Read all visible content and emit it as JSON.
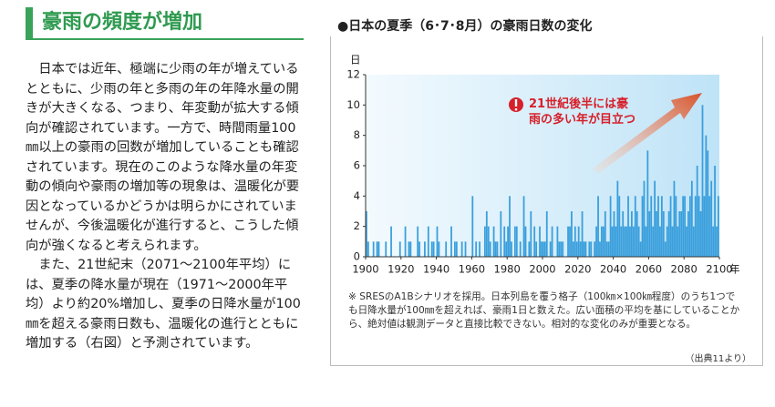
{
  "heading": "豪雨の頻度が増加",
  "paragraphs": [
    "日本では近年、極端に少雨の年が増えているとともに、少雨の年と多雨の年の年降水量の開きが大きくなる、つまり、年変動が拡大する傾向が確認されています。一方で、時間雨量100㎜以上の豪雨の回数が増加していることも確認されています。現在のこのような降水量の年変動の傾向や豪雨の増加等の現象は、温暖化が要因となっているかどうかは明らかにされていませんが、今後温暖化が進行すると、こうした傾向が強くなると考えられます。",
    "また、21世紀末（2071～2100年平均）には、夏季の降水量が現在（1971～2000年平均）より約20%増加し、夏季の日降水量が100㎜を超える豪雨日数も、温暖化の進行とともに増加する（右図）と予測されています。"
  ],
  "chart_data": {
    "type": "bar",
    "title": "●日本の夏季（6･7･8月）の豪雨日数の変化",
    "y_label": "日",
    "x_label": "年",
    "annotation": "21世紀後半には豪雨の多い年が目立つ",
    "note": "※ SRESのA1Bシナリオを採用。日本列島を覆う格子（100㎞×100㎞程度）のうち1つでも日降水量が100㎜を超えれば、豪雨1日と数えた。広い面積の平均を基にしていることから、絶対値は観測データと直接比較できない。相対的な変化のみが重要となる。",
    "source": "（出典11より）",
    "color": "#3a9fdc",
    "grid": false,
    "xlim": [
      1900,
      2100
    ],
    "ylim": [
      0,
      12
    ],
    "xticks": [
      1900,
      1920,
      1940,
      1960,
      1980,
      2000,
      2020,
      2040,
      2060,
      2080,
      2100
    ],
    "yticks": [
      0,
      2,
      4,
      6,
      8,
      10,
      12
    ],
    "x": [
      1900,
      1901,
      1902,
      1903,
      1904,
      1905,
      1906,
      1907,
      1908,
      1909,
      1910,
      1911,
      1912,
      1913,
      1914,
      1915,
      1916,
      1917,
      1918,
      1919,
      1920,
      1921,
      1922,
      1923,
      1924,
      1925,
      1926,
      1927,
      1928,
      1929,
      1930,
      1931,
      1932,
      1933,
      1934,
      1935,
      1936,
      1937,
      1938,
      1939,
      1940,
      1941,
      1942,
      1943,
      1944,
      1945,
      1946,
      1947,
      1948,
      1949,
      1950,
      1951,
      1952,
      1953,
      1954,
      1955,
      1956,
      1957,
      1958,
      1959,
      1960,
      1961,
      1962,
      1963,
      1964,
      1965,
      1966,
      1967,
      1968,
      1969,
      1970,
      1971,
      1972,
      1973,
      1974,
      1975,
      1976,
      1977,
      1978,
      1979,
      1980,
      1981,
      1982,
      1983,
      1984,
      1985,
      1986,
      1987,
      1988,
      1989,
      1990,
      1991,
      1992,
      1993,
      1994,
      1995,
      1996,
      1997,
      1998,
      1999,
      2000,
      2001,
      2002,
      2003,
      2004,
      2005,
      2006,
      2007,
      2008,
      2009,
      2010,
      2011,
      2012,
      2013,
      2014,
      2015,
      2016,
      2017,
      2018,
      2019,
      2020,
      2021,
      2022,
      2023,
      2024,
      2025,
      2026,
      2027,
      2028,
      2029,
      2030,
      2031,
      2032,
      2033,
      2034,
      2035,
      2036,
      2037,
      2038,
      2039,
      2040,
      2041,
      2042,
      2043,
      2044,
      2045,
      2046,
      2047,
      2048,
      2049,
      2050,
      2051,
      2052,
      2053,
      2054,
      2055,
      2056,
      2057,
      2058,
      2059,
      2060,
      2061,
      2062,
      2063,
      2064,
      2065,
      2066,
      2067,
      2068,
      2069,
      2070,
      2071,
      2072,
      2073,
      2074,
      2075,
      2076,
      2077,
      2078,
      2079,
      2080,
      2081,
      2082,
      2083,
      2084,
      2085,
      2086,
      2087,
      2088,
      2089,
      2090,
      2091,
      2092,
      2093,
      2094,
      2095,
      2096,
      2097,
      2098,
      2099
    ],
    "values": [
      3,
      1,
      0,
      0,
      1,
      0,
      1,
      1,
      0,
      0,
      0,
      1,
      0,
      0,
      2,
      0,
      0,
      0,
      0,
      1,
      0,
      0,
      2,
      0,
      1,
      1,
      0,
      0,
      0,
      2,
      1,
      0,
      0,
      1,
      0,
      2,
      0,
      1,
      1,
      0,
      2,
      1,
      0,
      0,
      0,
      1,
      0,
      0,
      2,
      0,
      1,
      1,
      0,
      0,
      1,
      0,
      1,
      0,
      0,
      0,
      4,
      0,
      1,
      0,
      1,
      0,
      0,
      2,
      3,
      2,
      1,
      0,
      2,
      1,
      1,
      0,
      3,
      0,
      2,
      1,
      2,
      4,
      1,
      0,
      2,
      2,
      0,
      1,
      0,
      4,
      2,
      0,
      1,
      3,
      0,
      2,
      1,
      0,
      2,
      1,
      1,
      1,
      3,
      0,
      1,
      2,
      0,
      0,
      2,
      1,
      1,
      1,
      0,
      0,
      2,
      2,
      3,
      1,
      2,
      1,
      2,
      1,
      3,
      1,
      1,
      0,
      1,
      1,
      0,
      1,
      2,
      4,
      1,
      2,
      2,
      3,
      1,
      1,
      4,
      2,
      3,
      2,
      5,
      4,
      2,
      3,
      2,
      2,
      4,
      2,
      3,
      2,
      4,
      3,
      2,
      1,
      4,
      5,
      2,
      7,
      3,
      4,
      2,
      5,
      3,
      4,
      2,
      4,
      3,
      1,
      2,
      3,
      4,
      2,
      5,
      4,
      2,
      3,
      3,
      4,
      4,
      2,
      3,
      4,
      5,
      2,
      4,
      6,
      4,
      3,
      10,
      4,
      8,
      7,
      4,
      5,
      2,
      6,
      2,
      4
    ]
  }
}
